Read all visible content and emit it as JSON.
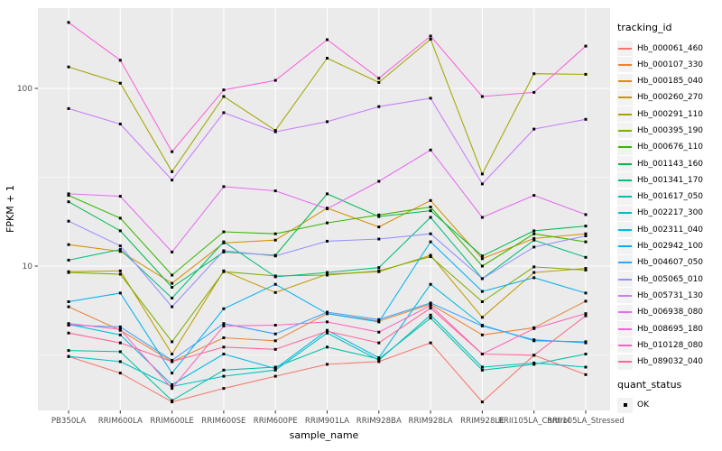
{
  "chart_data": {
    "type": "line",
    "title": "",
    "xlabel": "sample_name",
    "ylabel": "FPKM + 1",
    "y_scale": "log10",
    "y_ticks": [
      100,
      10
    ],
    "y_tick_labels": [
      "100",
      "10"
    ],
    "y_minor_gridlines": [
      31.62,
      3.162
    ],
    "ylim": [
      1.54,
      285
    ],
    "grid": "on",
    "panel_bg": "#EBEBEB",
    "grid_color": "#FFFFFF",
    "tick_label_color": "#4D4D4D",
    "point_marker": "filled-square",
    "point_color": "#000000",
    "legend_position": "right",
    "legend_title": "tracking_id",
    "categories": [
      "PB350LA",
      "RRIM600LA",
      "RRIM600LE",
      "RRIM600SE",
      "RRIM600PE",
      "RRIM901LA",
      "RRIM928BA",
      "RRIM928LA",
      "RRIM928LE",
      "RRII105LA_Control",
      "RRII105LA_Stressed"
    ],
    "series": [
      {
        "name": "Hb_000061_460",
        "color": "#F8766D",
        "values": [
          3.1,
          2.5,
          1.72,
          2.05,
          2.4,
          2.8,
          2.9,
          3.7,
          1.72,
          3.15,
          2.45
        ]
      },
      {
        "name": "Hb_000107_330",
        "color": "#EB8335",
        "values": [
          5.9,
          4.35,
          2.9,
          3.95,
          3.8,
          5.4,
          4.9,
          6.1,
          4.1,
          4.5,
          6.35
        ]
      },
      {
        "name": "Hb_000185_040",
        "color": "#D89000",
        "values": [
          13.2,
          12.1,
          8.0,
          13.5,
          14.0,
          21.2,
          16.6,
          23.4,
          11.0,
          14.3,
          15.2
        ]
      },
      {
        "name": "Hb_000260_270",
        "color": "#C09B00",
        "values": [
          9.3,
          9.4,
          3.2,
          9.4,
          7.1,
          9.0,
          9.3,
          11.5,
          5.15,
          9.2,
          9.7
        ]
      },
      {
        "name": "Hb_000291_110",
        "color": "#A3A500",
        "values": [
          132,
          107,
          34,
          90,
          58,
          148,
          108,
          189,
          33,
          121,
          120
        ]
      },
      {
        "name": "Hb_000395_190",
        "color": "#7CAE00",
        "values": [
          9.2,
          9.0,
          3.75,
          9.3,
          8.8,
          8.9,
          9.4,
          11.3,
          6.3,
          9.9,
          9.5
        ]
      },
      {
        "name": "Hb_000676_110",
        "color": "#39B600",
        "values": [
          25,
          18.6,
          8.9,
          15.6,
          15.2,
          17.5,
          19.4,
          21.5,
          10.0,
          15.2,
          13.7
        ]
      },
      {
        "name": "Hb_001143_160",
        "color": "#00BB4E",
        "values": [
          23,
          15.8,
          7.6,
          12.0,
          11.5,
          25.5,
          19.0,
          20.5,
          11.4,
          15.8,
          16.8
        ]
      },
      {
        "name": "Hb_001341_170",
        "color": "#00BF7D",
        "values": [
          10.8,
          12.4,
          6.6,
          13.7,
          8.7,
          9.2,
          9.8,
          18.8,
          8.5,
          14.0,
          11.2
        ]
      },
      {
        "name": "Hb_001617_050",
        "color": "#00C1A3",
        "values": [
          3.35,
          3.3,
          1.75,
          2.6,
          2.7,
          3.5,
          3.0,
          5.1,
          2.6,
          2.8,
          3.2
        ]
      },
      {
        "name": "Hb_002217_300",
        "color": "#00BFC4",
        "values": [
          3.1,
          2.9,
          2.1,
          2.4,
          2.6,
          4.2,
          2.95,
          5.3,
          2.7,
          2.85,
          2.7
        ]
      },
      {
        "name": "Hb_002311_040",
        "color": "#00BAE0",
        "values": [
          4.7,
          4.1,
          2.15,
          3.2,
          2.65,
          4.35,
          3.05,
          7.9,
          4.65,
          3.8,
          3.75
        ]
      },
      {
        "name": "Hb_002942_100",
        "color": "#00B0F6",
        "values": [
          6.3,
          7.05,
          2.5,
          5.75,
          7.9,
          5.4,
          4.85,
          13.7,
          7.2,
          8.6,
          7.05
        ]
      },
      {
        "name": "Hb_004607_050",
        "color": "#35A2FF",
        "values": [
          4.65,
          4.55,
          2.95,
          4.75,
          4.15,
          5.5,
          5.0,
          6.2,
          4.6,
          3.85,
          3.7
        ]
      },
      {
        "name": "Hb_005065_010",
        "color": "#9590FF",
        "values": [
          17.9,
          13.0,
          5.9,
          12.2,
          11.4,
          13.8,
          14.2,
          15.2,
          8.5,
          12.8,
          14.8
        ]
      },
      {
        "name": "Hb_005731_130",
        "color": "#C77CFF",
        "values": [
          77,
          63,
          30.5,
          73,
          57,
          65,
          79,
          88,
          29,
          59,
          67
        ]
      },
      {
        "name": "Hb_006938_080",
        "color": "#E76BF3",
        "values": [
          25.5,
          24.7,
          12,
          28,
          26.5,
          21,
          30,
          45,
          18.8,
          25,
          19.5
        ]
      },
      {
        "name": "Hb_008695_180",
        "color": "#FA62DB",
        "values": [
          235,
          144,
          44,
          98,
          111,
          188,
          114,
          197,
          90,
          95,
          173
        ]
      },
      {
        "name": "Hb_010128_080",
        "color": "#FF62BC",
        "values": [
          4.75,
          4.4,
          2.05,
          4.6,
          4.65,
          4.85,
          4.25,
          6.0,
          3.2,
          4.45,
          5.4
        ]
      },
      {
        "name": "Hb_089032_040",
        "color": "#FF6598",
        "values": [
          4.2,
          3.7,
          2.9,
          3.5,
          3.4,
          4.3,
          3.7,
          5.8,
          3.2,
          3.15,
          5.25
        ]
      }
    ],
    "quant_legend": {
      "title": "quant_status",
      "entries": [
        "OK"
      ],
      "marker": "filled-square",
      "marker_color": "#000000"
    }
  }
}
